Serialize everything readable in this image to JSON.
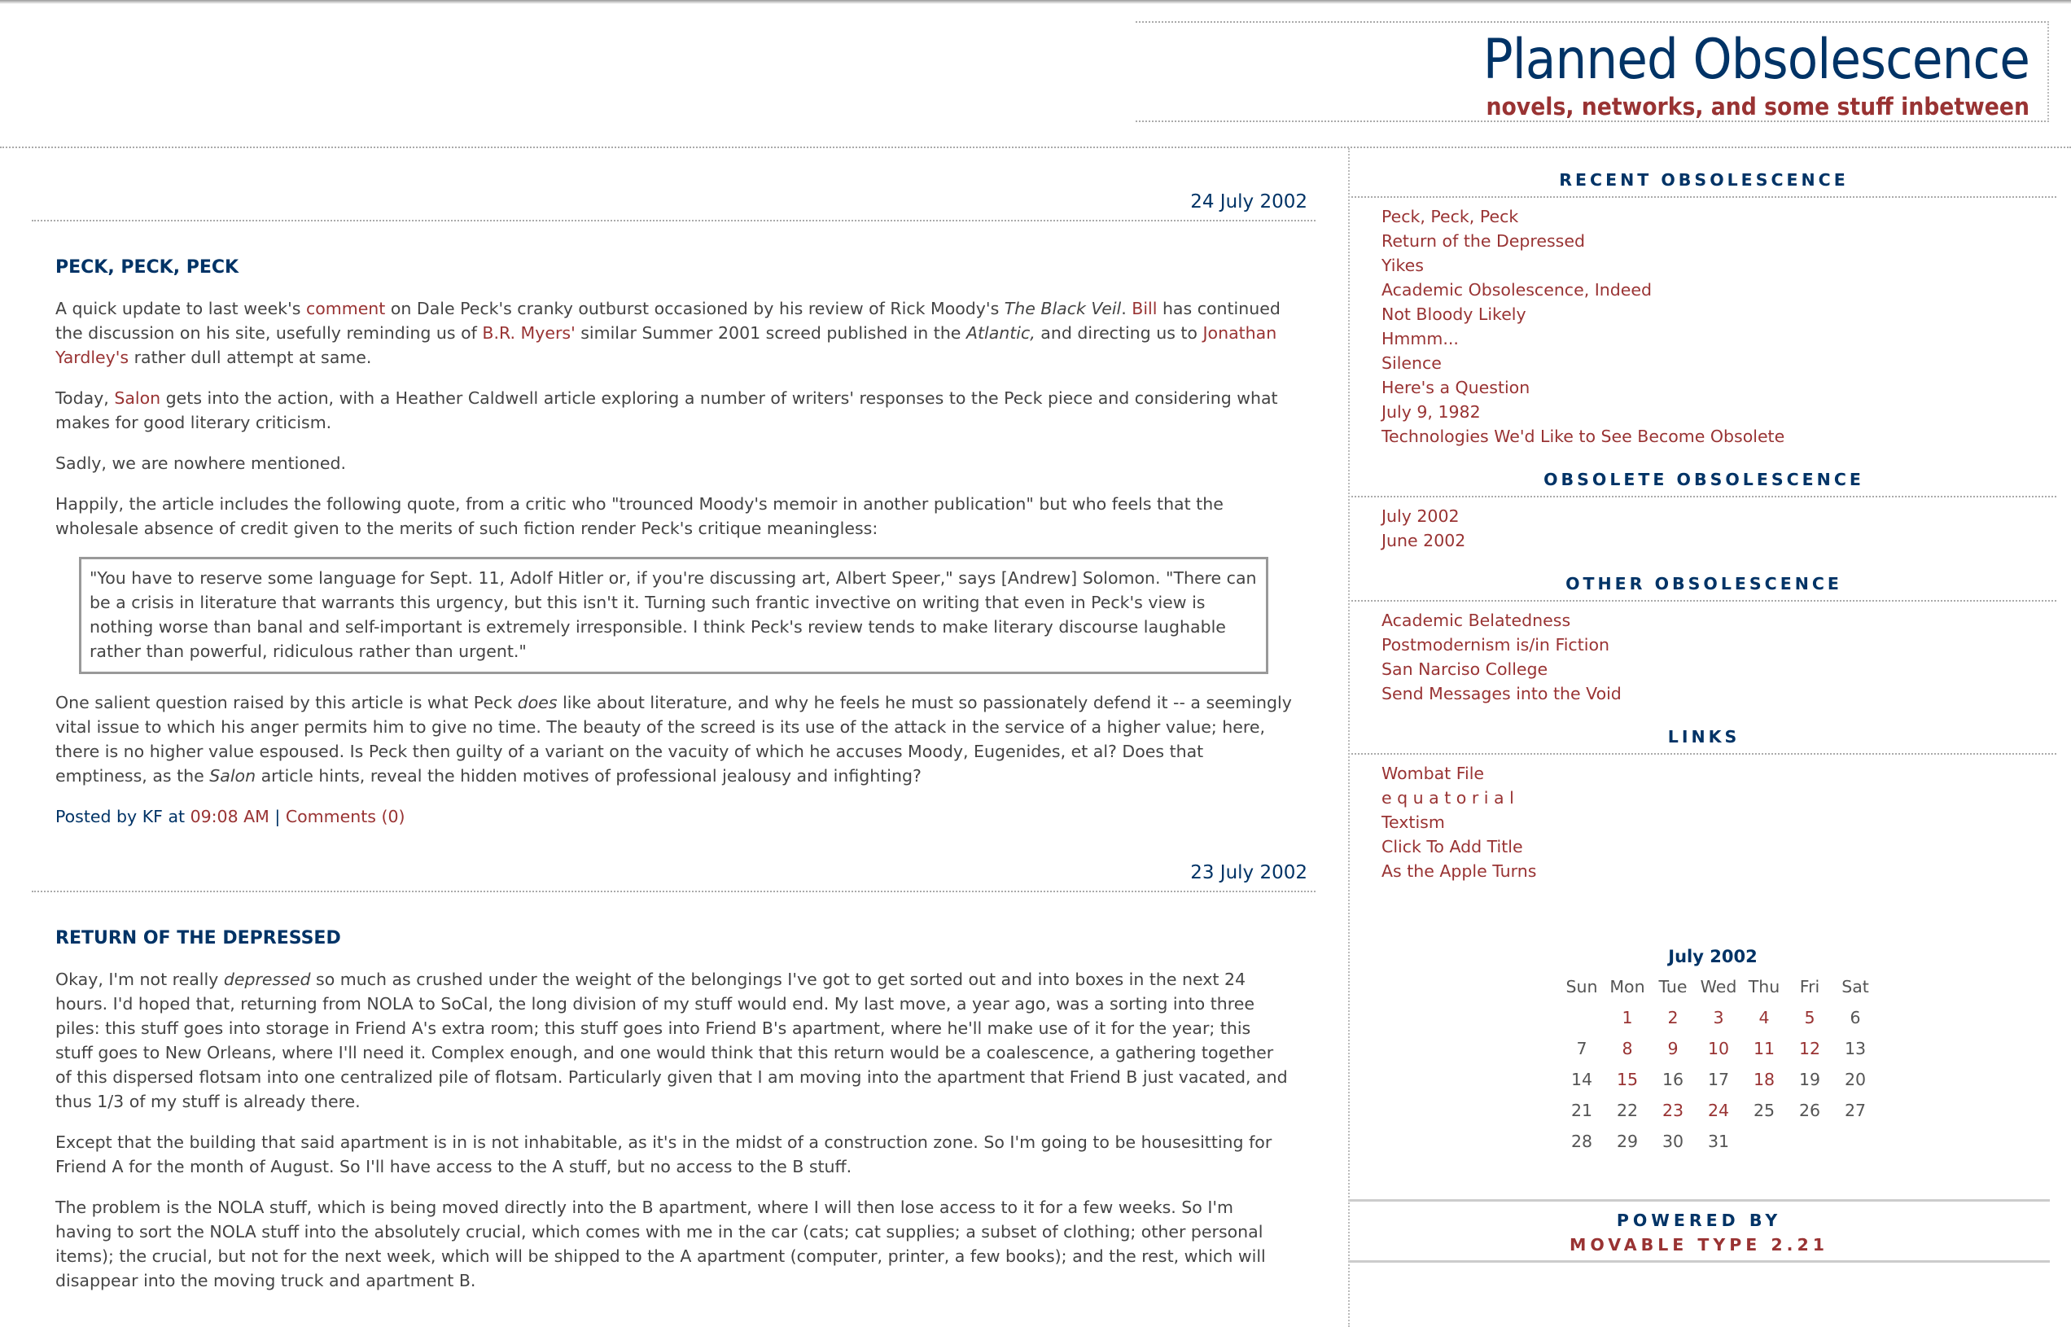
{
  "header": {
    "title": "Planned Obsolescence",
    "subtitle": "novels, networks, and some stuff inbetween"
  },
  "colors": {
    "navy": "#003366",
    "link": "#993333",
    "text": "#444444"
  },
  "posts": [
    {
      "date": "24 July 2002",
      "title": "PECK, PECK, PECK",
      "paragraphs": [
        [
          {
            "t": "A quick update to last week's "
          },
          {
            "t": "comment",
            "link": true
          },
          {
            "t": " on Dale Peck's cranky outburst occasioned by his review of Rick Moody's "
          },
          {
            "t": "The Black Veil",
            "em": true
          },
          {
            "t": ". "
          },
          {
            "t": "Bill",
            "link": true
          },
          {
            "t": " has continued the discussion on his site, usefully reminding us of "
          },
          {
            "t": "B.R. Myers'",
            "link": true
          },
          {
            "t": " similar Summer 2001 screed published in the "
          },
          {
            "t": "Atlantic,",
            "em": true
          },
          {
            "t": " and directing us to "
          },
          {
            "t": "Jonathan Yardley's",
            "link": true
          },
          {
            "t": " rather dull attempt at same."
          }
        ],
        [
          {
            "t": "Today, "
          },
          {
            "t": "Salon",
            "link": true
          },
          {
            "t": " gets into the action, with a Heather Caldwell article exploring a number of writers' responses to the Peck piece and considering what makes for good literary criticism."
          }
        ],
        [
          {
            "t": "Sadly, we are nowhere mentioned."
          }
        ],
        [
          {
            "t": "Happily, the article includes the following quote, from a critic who \"trounced Moody's memoir in another publication\" but who feels that the wholesale absence of credit given to the merits of such fiction render Peck's critique meaningless:"
          }
        ],
        {
          "quote": [
            {
              "t": "\"You have to reserve some language for Sept. 11, Adolf Hitler or, if you're discussing art, Albert Speer,\" says [Andrew] Solomon. \"There can be a crisis in literature that warrants this urgency, but this isn't it. Turning such frantic invective on writing that even in Peck's view is nothing worse than banal and self-important is extremely irresponsible. I think Peck's review tends to make literary discourse laughable rather than powerful, ridiculous rather than urgent.\""
            }
          ]
        },
        [
          {
            "t": "One salient question raised by this article is what Peck "
          },
          {
            "t": "does",
            "em": true
          },
          {
            "t": " like about literature, and why he feels he must so passionately defend it -- a seemingly vital issue to which his anger permits him to give no time. The beauty of the screed is its use of the attack in the service of a higher value; here, there is no higher value espoused. Is Peck then guilty of a variant on the vacuity of which he accuses Moody, Eugenides, et al? Does that emptiness, as the "
          },
          {
            "t": "Salon",
            "em": true
          },
          {
            "t": " article hints, reveal the hidden motives of professional jealousy and infighting?"
          }
        ]
      ],
      "footer": [
        {
          "t": "Posted by KF at "
        },
        {
          "t": "09:08 AM",
          "link": true
        },
        {
          "t": " | "
        },
        {
          "t": "Comments (0)",
          "link": true
        }
      ]
    },
    {
      "date": "23 July 2002",
      "title": "RETURN OF THE DEPRESSED",
      "paragraphs": [
        [
          {
            "t": "Okay, I'm not really "
          },
          {
            "t": "depressed",
            "em": true
          },
          {
            "t": " so much as crushed under the weight of the belongings I've got to get sorted out and into boxes in the next 24 hours. I'd hoped that, returning from NOLA to SoCal, the long division of my stuff would end. My last move, a year ago, was a sorting into three piles: this stuff goes into storage in Friend A's extra room; this stuff goes into Friend B's apartment, where he'll make use of it for the year; this stuff goes to New Orleans, where I'll need it. Complex enough, and one would think that this return would be a coalescence, a gathering together of this dispersed flotsam into one centralized pile of flotsam. Particularly given that I am moving into the apartment that Friend B just vacated, and thus 1/3 of my stuff is already there."
          }
        ],
        [
          {
            "t": "Except that the building that said apartment is in is not inhabitable, as it's in the midst of a construction zone. So I'm going to be housesitting for Friend A for the month of August. So I'll have access to the A stuff, but no access to the B stuff."
          }
        ],
        [
          {
            "t": "The problem is the NOLA stuff, which is being moved directly into the B apartment, where I will then lose access to it for a few weeks. So I'm having to sort the NOLA stuff into the absolutely crucial, which comes with me in the car (cats; cat supplies; a subset of clothing; other personal items); the crucial, but not for the next week, which will be shipped to the A apartment (computer, printer, a few books); and the rest, which will disappear into the moving truck and apartment B."
          }
        ]
      ]
    }
  ],
  "sidebar": {
    "sections": [
      {
        "heading": "RECENT OBSOLESCENCE",
        "items": [
          "Peck, Peck, Peck",
          "Return of the Depressed",
          "Yikes",
          "Academic Obsolescence, Indeed",
          "Not Bloody Likely",
          "Hmmm...",
          "Silence",
          "Here's a Question",
          "July 9, 1982",
          "Technologies We'd Like to See Become Obsolete"
        ]
      },
      {
        "heading": "OBSOLETE OBSOLESCENCE",
        "items": [
          "July 2002",
          "June 2002"
        ]
      },
      {
        "heading": "OTHER OBSOLESCENCE",
        "items": [
          "Academic Belatedness",
          "Postmodernism is/in Fiction",
          "San Narciso College",
          "Send Messages into the Void"
        ]
      },
      {
        "heading": "LINKS",
        "items": [
          "Wombat File",
          "e q u a t o r i a l",
          "Textism",
          "Click To Add Title",
          "As the Apple Turns"
        ]
      }
    ],
    "calendar": {
      "title": "July 2002",
      "weekdays": [
        "Sun",
        "Mon",
        "Tue",
        "Wed",
        "Thu",
        "Fri",
        "Sat"
      ],
      "weeks": [
        [
          "",
          "1",
          "2",
          "3",
          "4",
          "5",
          "6"
        ],
        [
          "7",
          "8",
          "9",
          "10",
          "11",
          "12",
          "13"
        ],
        [
          "14",
          "15",
          "16",
          "17",
          "18",
          "19",
          "20"
        ],
        [
          "21",
          "22",
          "23",
          "24",
          "25",
          "26",
          "27"
        ],
        [
          "28",
          "29",
          "30",
          "31",
          "",
          "",
          ""
        ]
      ],
      "linked_days": [
        "1",
        "2",
        "3",
        "4",
        "5",
        "8",
        "9",
        "10",
        "11",
        "12",
        "15",
        "18",
        "23",
        "24"
      ]
    },
    "powered_by": "POWERED BY",
    "powered_name": "MOVABLE TYPE 2.21"
  }
}
